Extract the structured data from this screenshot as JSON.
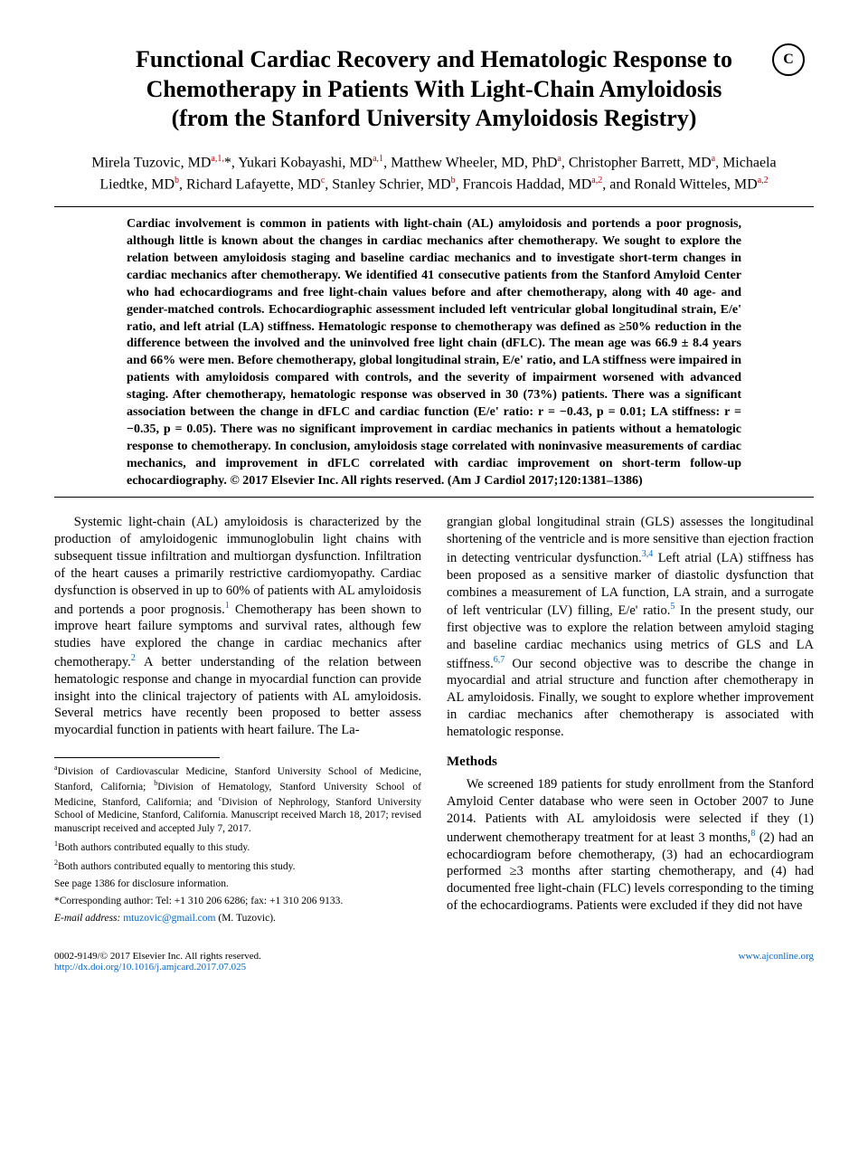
{
  "crossmark_label": "C",
  "title": "Functional Cardiac Recovery and Hematologic Response to Chemotherapy in Patients With Light-Chain Amyloidosis (from the Stanford University Amyloidosis Registry)",
  "authors_html": "Mirela Tuzovic, MD<sup class=\"aff\">a,1,</sup>*, Yukari Kobayashi, MD<sup class=\"aff\">a,1</sup>, Matthew Wheeler, MD, PhD<sup class=\"aff\">a</sup>, Christopher Barrett, MD<sup class=\"aff\">a</sup>, Michaela Liedtke, MD<sup class=\"aff\">b</sup>, Richard Lafayette, MD<sup class=\"aff\">c</sup>, Stanley Schrier, MD<sup class=\"aff\">b</sup>, Francois Haddad, MD<sup class=\"aff\">a,2</sup>, and Ronald Witteles, MD<sup class=\"aff\">a,2</sup>",
  "abstract": "Cardiac involvement is common in patients with light-chain (AL) amyloidosis and portends a poor prognosis, although little is known about the changes in cardiac mechanics after chemotherapy. We sought to explore the relation between amyloidosis staging and baseline cardiac mechanics and to investigate short-term changes in cardiac mechanics after chemotherapy. We identified 41 consecutive patients from the Stanford Amyloid Center who had echocardiograms and free light-chain values before and after chemotherapy, along with 40 age- and gender-matched controls. Echocardiographic assessment included left ventricular global longitudinal strain, E/e' ratio, and left atrial (LA) stiffness. Hematologic response to chemotherapy was defined as ≥50% reduction in the difference between the involved and the uninvolved free light chain (dFLC). The mean age was 66.9 ± 8.4 years and 66% were men. Before chemotherapy, global longitudinal strain, E/e' ratio, and LA stiffness were impaired in patients with amyloidosis compared with controls, and the severity of impairment worsened with advanced staging. After chemotherapy, hematologic response was observed in 30 (73%) patients. There was a significant association between the change in dFLC and cardiac function (E/e' ratio: r = −0.43, p = 0.01; LA stiffness: r = −0.35, p = 0.05). There was no significant improvement in cardiac mechanics in patients without a hematologic response to chemotherapy. In conclusion, amyloidosis stage correlated with noninvasive measurements of cardiac mechanics, and improvement in dFLC correlated with cardiac improvement on short-term follow-up echocardiography. © 2017 Elsevier Inc. All rights reserved. (Am J Cardiol 2017;120:1381–1386)",
  "body": {
    "left_p1": "Systemic light-chain (AL) amyloidosis is characterized by the production of amyloidogenic immunoglobulin light chains with subsequent tissue infiltration and multiorgan dysfunction. Infiltration of the heart causes a primarily restrictive cardiomyopathy. Cardiac dysfunction is observed in up to 60% of patients with AL amyloidosis and portends a poor prognosis.<span class=\"super-ref\">1</span> Chemotherapy has been shown to improve heart failure symptoms and survival rates, although few studies have explored the change in cardiac mechanics after chemotherapy.<span class=\"super-ref\">2</span> A better understanding of the relation between hematologic response and change in myocardial function can provide insight into the clinical trajectory of patients with AL amyloidosis. Several metrics have recently been proposed to better assess myocardial function in patients with heart failure. The La-",
    "right_p1": "grangian global longitudinal strain (GLS) assesses the longitudinal shortening of the ventricle and is more sensitive than ejection fraction in detecting ventricular dysfunction.<span class=\"super-ref\">3,4</span> Left atrial (LA) stiffness has been proposed as a sensitive marker of diastolic dysfunction that combines a measurement of LA function, LA strain, and a surrogate of left ventricular (LV) filling, E/e' ratio.<span class=\"super-ref\">5</span> In the present study, our first objective was to explore the relation between amyloid staging and baseline cardiac mechanics using metrics of GLS and LA stiffness.<span class=\"super-ref\">6,7</span> Our second objective was to describe the change in myocardial and atrial structure and function after chemotherapy in AL amyloidosis. Finally, we sought to explore whether improvement in cardiac mechanics after chemotherapy is associated with hematologic response.",
    "methods_head": "Methods",
    "methods_p1": "We screened 189 patients for study enrollment from the Stanford Amyloid Center database who were seen in October 2007 to June 2014. Patients with AL amyloidosis were selected if they (1) underwent chemotherapy treatment for at least 3 months,<span class=\"super-ref\">8</span> (2) had an echocardiogram before chemotherapy, (3) had an echocardiogram performed ≥3 months after starting chemotherapy, and (4) had documented free light-chain (FLC) levels corresponding to the timing of the echocardiograms. Patients were excluded if they did not have"
  },
  "affiliations": {
    "line1": "<sup>a</sup>Division of Cardiovascular Medicine, Stanford University School of Medicine, Stanford, California; <sup>b</sup>Division of Hematology, Stanford University School of Medicine, Stanford, California; and <sup>c</sup>Division of Nephrology, Stanford University School of Medicine, Stanford, California. Manuscript received March 18, 2017; revised manuscript received and accepted July 7, 2017.",
    "note1": "<sup>1</sup>Both authors contributed equally to this study.",
    "note2": "<sup>2</sup>Both authors contributed equally to mentoring this study.",
    "disclosure": "See page 1386 for disclosure information.",
    "corresponding": "*Corresponding author: Tel: +1 310 206 6286; fax: +1 310 206 9133.",
    "email_label": "E-mail address:",
    "email": "mtuzovic@gmail.com",
    "email_suffix": "(M. Tuzovic)."
  },
  "footer": {
    "copyright": "0002-9149/© 2017 Elsevier Inc. All rights reserved.",
    "doi": "http://dx.doi.org/10.1016/j.amjcard.2017.07.025",
    "site": "www.ajconline.org"
  }
}
